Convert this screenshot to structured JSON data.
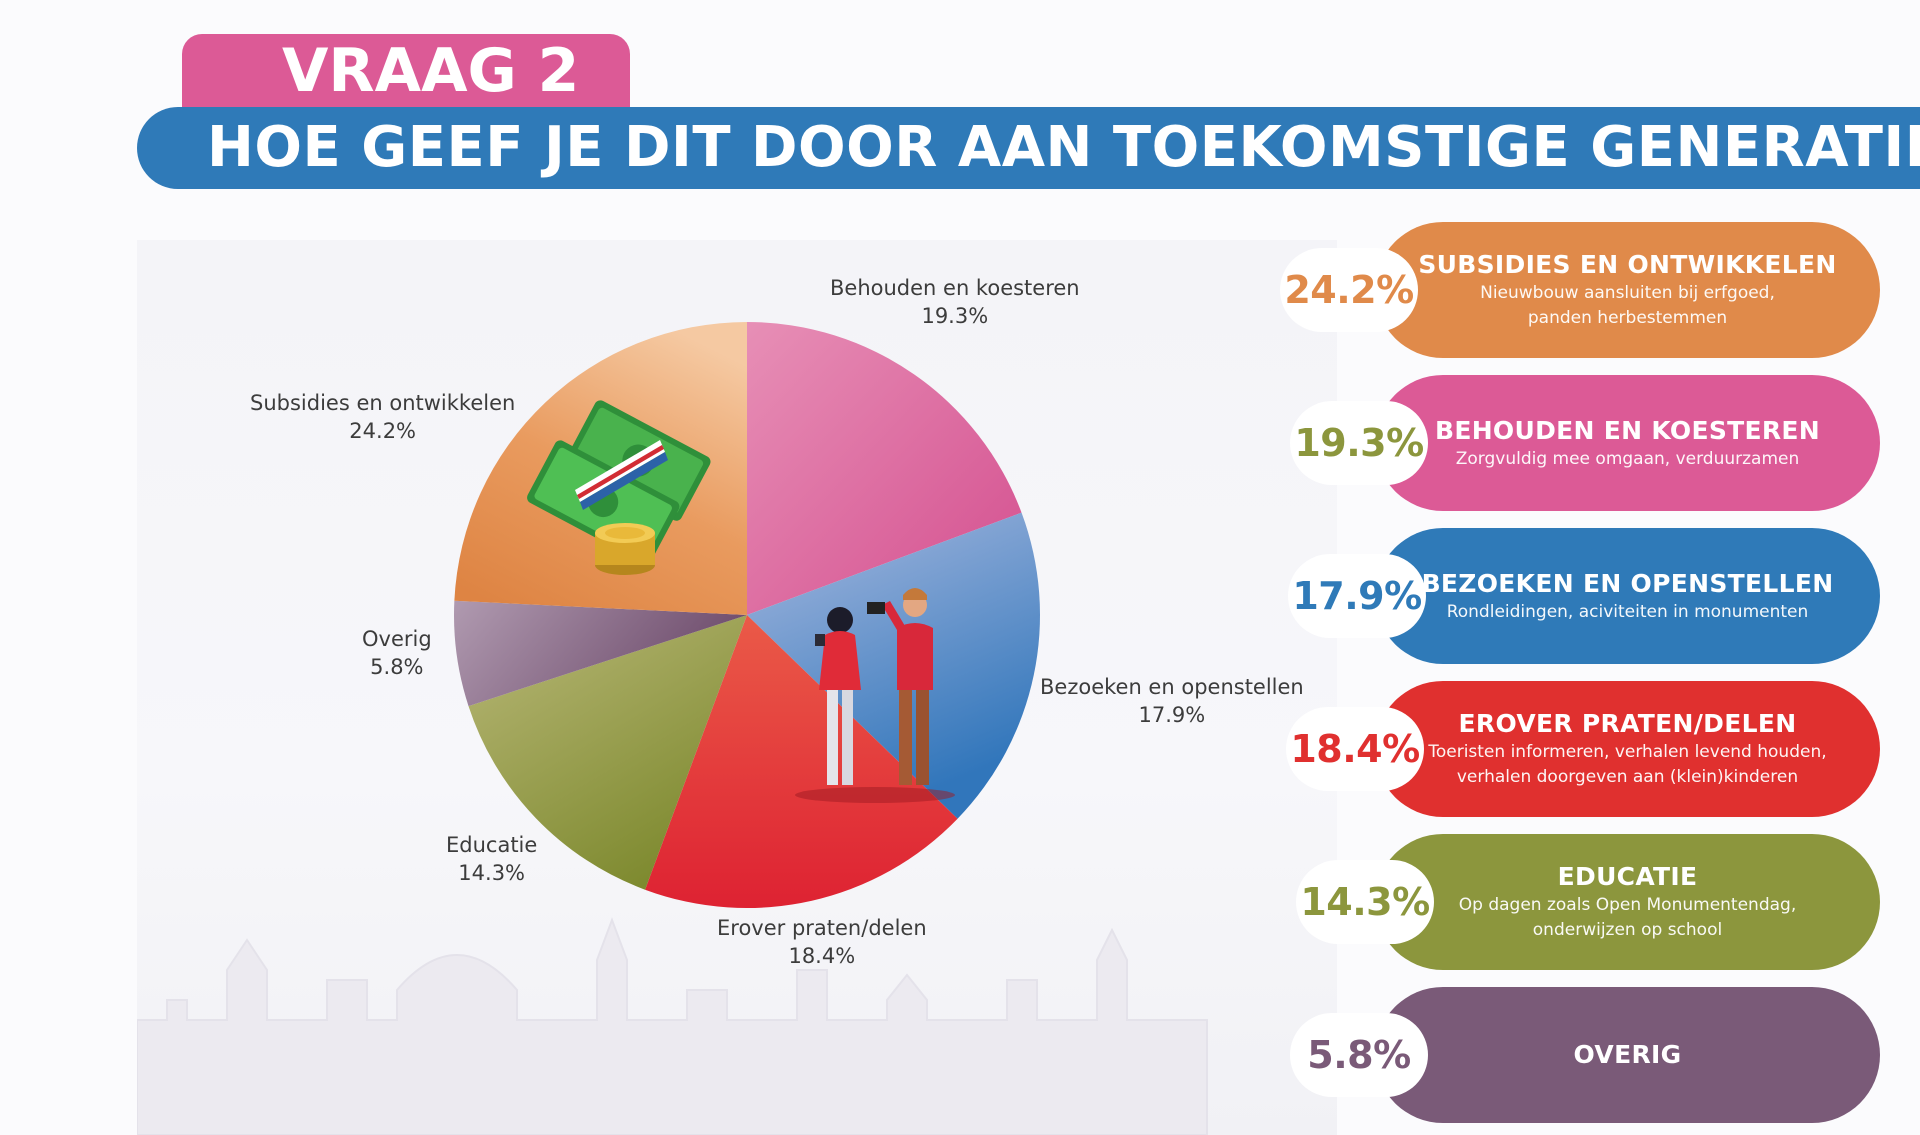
{
  "header": {
    "tab_label": "VRAAG 2",
    "title": "HOE GEEF JE DIT DOOR AAN TOEKOMSTIGE GENERATIES"
  },
  "chart_data": {
    "type": "pie",
    "title": "HOE GEEF JE DIT DOOR AAN TOEKOMSTIGE GENERATIES",
    "slices": [
      {
        "label": "Behouden en koesteren",
        "value": 19.3,
        "value_label": "19.3%",
        "color": "#dc5a96"
      },
      {
        "label": "Bezoeken en openstellen",
        "value": 17.9,
        "value_label": "17.9%",
        "color": "#3d7fc1"
      },
      {
        "label": "Erover praten/delen",
        "value": 18.4,
        "value_label": "18.4%",
        "color": "#e0302f"
      },
      {
        "label": "Educatie",
        "value": 14.3,
        "value_label": "14.3%",
        "color": "#8c963d"
      },
      {
        "label": "Overig",
        "value": 5.8,
        "value_label": "5.8%",
        "color": "#7a5a78"
      },
      {
        "label": "Subsidies en ontwikkelen",
        "value": 24.2,
        "value_label": "24.2%",
        "color": "#e08a4a"
      }
    ]
  },
  "legend_cards": [
    {
      "percent": "24.2%",
      "title": "SUBSIDIES EN ONTWIKKELEN",
      "desc_lines": [
        "Nieuwbouw aansluiten bij erfgoed,",
        "panden herbestemmen"
      ],
      "color": "#e08a4a"
    },
    {
      "percent": "19.3%",
      "title": "BEHOUDEN EN KOESTEREN",
      "desc_lines": [
        "Zorgvuldig mee omgaan, verduurzamen"
      ],
      "color": "#dc5a96",
      "badge_color": "#8c963d"
    },
    {
      "percent": "17.9%",
      "title": "BEZOEKEN EN OPENSTELLEN",
      "desc_lines": [
        "Rondleidingen, aciviteiten in monumenten"
      ],
      "color": "#2f7ab8"
    },
    {
      "percent": "18.4%",
      "title": "EROVER PRATEN/DELEN",
      "desc_lines": [
        "Toeristen informeren, verhalen levend houden,",
        "verhalen doorgeven aan (klein)kinderen"
      ],
      "color": "#e0302f"
    },
    {
      "percent": "14.3%",
      "title": "EDUCATIE",
      "desc_lines": [
        "Op dagen zoals Open Monumentendag,",
        "onderwijzen op school"
      ],
      "color": "#8c963d"
    },
    {
      "percent": "5.8%",
      "title": "OVERIG",
      "desc_lines": [],
      "color": "#7a5a78"
    }
  ]
}
